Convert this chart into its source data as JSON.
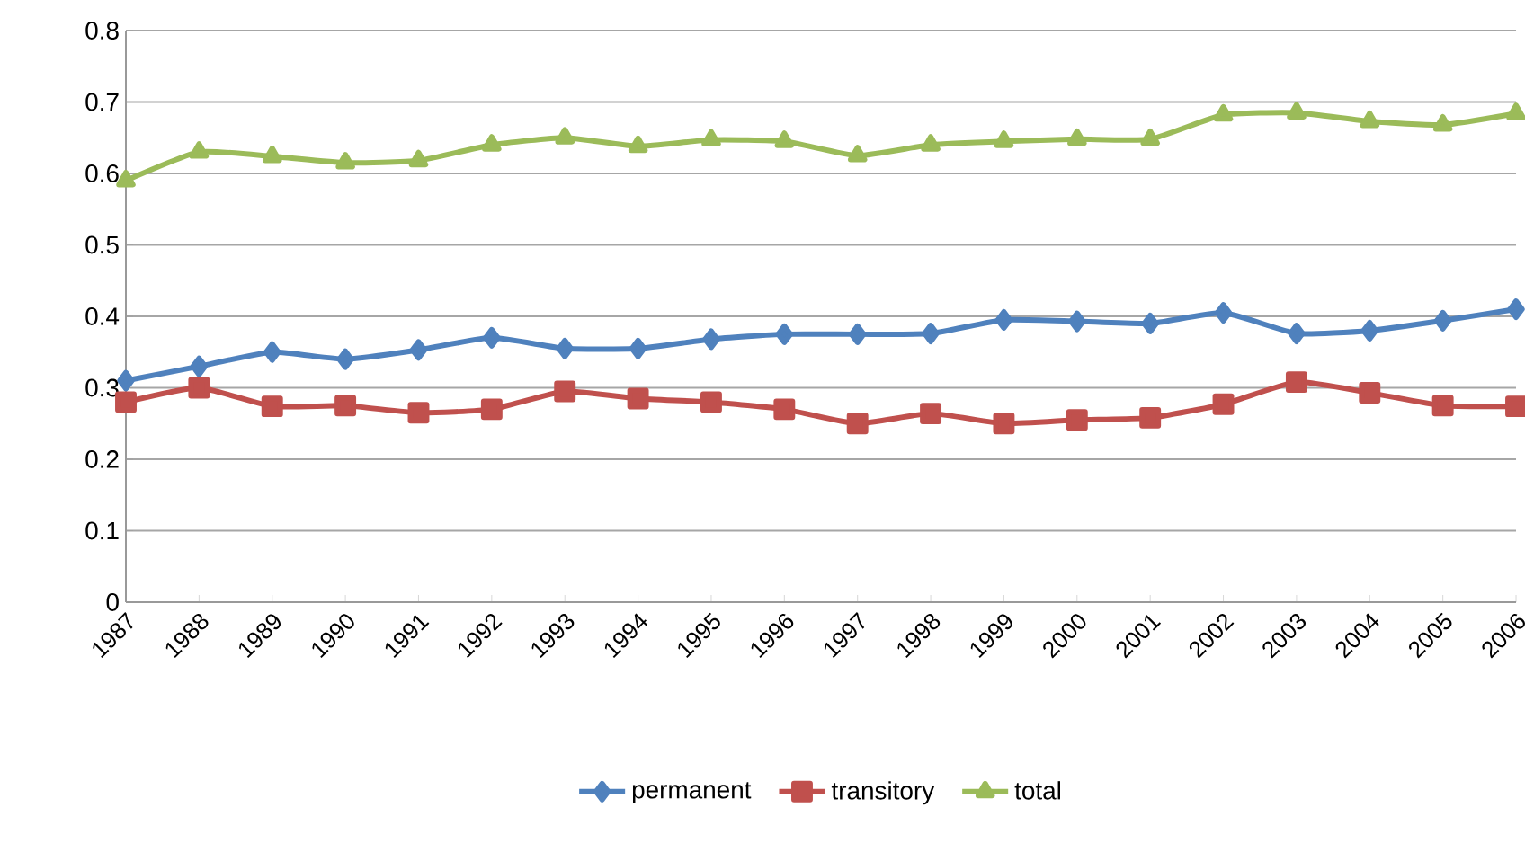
{
  "chart_data": {
    "type": "line",
    "categories": [
      "1987",
      "1988",
      "1989",
      "1990",
      "1991",
      "1992",
      "1993",
      "1994",
      "1995",
      "1996",
      "1997",
      "1998",
      "1999",
      "2000",
      "2001",
      "2002",
      "2003",
      "2004",
      "2005",
      "2006"
    ],
    "series": [
      {
        "name": "permanent",
        "color": "#4f81bd",
        "marker": "diamond",
        "values": [
          0.31,
          0.33,
          0.35,
          0.34,
          0.353,
          0.37,
          0.355,
          0.355,
          0.368,
          0.375,
          0.375,
          0.376,
          0.395,
          0.393,
          0.39,
          0.405,
          0.376,
          0.38,
          0.394,
          0.41
        ]
      },
      {
        "name": "transitory",
        "color": "#c0504d",
        "marker": "square",
        "values": [
          0.28,
          0.3,
          0.274,
          0.275,
          0.265,
          0.27,
          0.295,
          0.285,
          0.28,
          0.27,
          0.25,
          0.264,
          0.25,
          0.255,
          0.258,
          0.277,
          0.308,
          0.293,
          0.275,
          0.274
        ]
      },
      {
        "name": "total",
        "color": "#9bbb59",
        "marker": "triangle",
        "values": [
          0.59,
          0.63,
          0.624,
          0.615,
          0.618,
          0.64,
          0.65,
          0.638,
          0.647,
          0.645,
          0.625,
          0.64,
          0.645,
          0.648,
          0.648,
          0.682,
          0.685,
          0.673,
          0.668,
          0.684
        ]
      }
    ],
    "ylim": [
      0,
      0.8
    ],
    "yticks": [
      0,
      0.1,
      0.2,
      0.3,
      0.4,
      0.5,
      0.6,
      0.7,
      0.8
    ],
    "grid": "y",
    "legend": "bottom",
    "line_style": "solid"
  }
}
